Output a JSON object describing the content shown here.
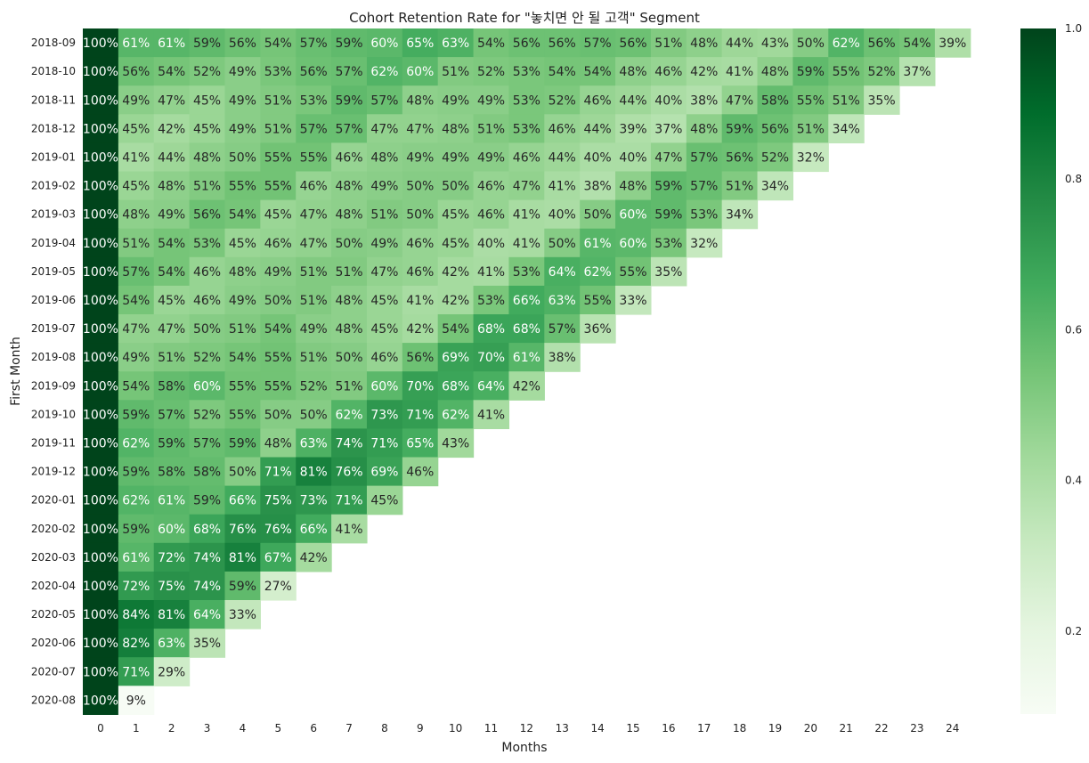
{
  "chart_data": {
    "type": "heatmap",
    "title": "Cohort Retention Rate for \"놓치면 안 될 고객\" Segment",
    "xlabel": "Months",
    "ylabel": "First Month",
    "x": [
      "0",
      "1",
      "2",
      "3",
      "4",
      "5",
      "6",
      "7",
      "8",
      "9",
      "10",
      "11",
      "12",
      "13",
      "14",
      "15",
      "16",
      "17",
      "18",
      "19",
      "20",
      "21",
      "22",
      "23",
      "24"
    ],
    "y": [
      "2018-09",
      "2018-10",
      "2018-11",
      "2018-12",
      "2019-01",
      "2019-02",
      "2019-03",
      "2019-04",
      "2019-05",
      "2019-06",
      "2019-07",
      "2019-08",
      "2019-09",
      "2019-10",
      "2019-11",
      "2019-12",
      "2020-01",
      "2020-02",
      "2020-03",
      "2020-04",
      "2020-05",
      "2020-06",
      "2020-07",
      "2020-08"
    ],
    "values": [
      [
        100,
        61,
        61,
        59,
        56,
        54,
        57,
        59,
        60,
        65,
        63,
        54,
        56,
        56,
        57,
        56,
        51,
        48,
        44,
        43,
        50,
        62,
        56,
        54,
        39
      ],
      [
        100,
        56,
        54,
        52,
        49,
        53,
        56,
        57,
        62,
        60,
        51,
        52,
        53,
        54,
        54,
        48,
        46,
        42,
        41,
        48,
        59,
        55,
        52,
        37
      ],
      [
        100,
        49,
        47,
        45,
        49,
        51,
        53,
        59,
        57,
        48,
        49,
        49,
        53,
        52,
        46,
        44,
        40,
        38,
        47,
        58,
        55,
        51,
        35
      ],
      [
        100,
        45,
        42,
        45,
        49,
        51,
        57,
        57,
        47,
        47,
        48,
        51,
        53,
        46,
        44,
        39,
        37,
        48,
        59,
        56,
        51,
        34
      ],
      [
        100,
        41,
        44,
        48,
        50,
        55,
        55,
        46,
        48,
        49,
        49,
        49,
        46,
        44,
        40,
        40,
        47,
        57,
        56,
        52,
        32
      ],
      [
        100,
        45,
        48,
        51,
        55,
        55,
        46,
        48,
        49,
        50,
        50,
        46,
        47,
        41,
        38,
        48,
        59,
        57,
        51,
        34
      ],
      [
        100,
        48,
        49,
        56,
        54,
        45,
        47,
        48,
        51,
        50,
        45,
        46,
        41,
        40,
        50,
        60,
        59,
        53,
        34
      ],
      [
        100,
        51,
        54,
        53,
        45,
        46,
        47,
        50,
        49,
        46,
        45,
        40,
        41,
        50,
        61,
        60,
        53,
        32
      ],
      [
        100,
        57,
        54,
        46,
        48,
        49,
        51,
        51,
        47,
        46,
        42,
        41,
        53,
        64,
        62,
        55,
        35
      ],
      [
        100,
        54,
        45,
        46,
        49,
        50,
        51,
        48,
        45,
        41,
        42,
        53,
        66,
        63,
        55,
        33
      ],
      [
        100,
        47,
        47,
        50,
        51,
        54,
        49,
        48,
        45,
        42,
        54,
        68,
        68,
        57,
        36
      ],
      [
        100,
        49,
        51,
        52,
        54,
        55,
        51,
        50,
        46,
        56,
        69,
        70,
        61,
        38
      ],
      [
        100,
        54,
        58,
        60,
        55,
        55,
        52,
        51,
        60,
        70,
        68,
        64,
        42
      ],
      [
        100,
        59,
        57,
        52,
        55,
        50,
        50,
        62,
        73,
        71,
        62,
        41
      ],
      [
        100,
        62,
        59,
        57,
        59,
        48,
        63,
        74,
        71,
        65,
        43
      ],
      [
        100,
        59,
        58,
        58,
        50,
        71,
        81,
        76,
        69,
        46
      ],
      [
        100,
        62,
        61,
        59,
        66,
        75,
        73,
        71,
        45
      ],
      [
        100,
        59,
        60,
        68,
        76,
        76,
        66,
        41
      ],
      [
        100,
        61,
        72,
        74,
        81,
        67,
        42
      ],
      [
        100,
        72,
        75,
        74,
        59,
        27
      ],
      [
        100,
        84,
        81,
        64,
        33
      ],
      [
        100,
        82,
        63,
        35
      ],
      [
        100,
        71,
        29
      ],
      [
        100,
        9
      ]
    ],
    "value_format": "percent",
    "colorbar": {
      "ticks": [
        "0.2",
        "0.4",
        "0.6",
        "0.8",
        "1.0"
      ],
      "vmin": 0.09,
      "vmax": 1.0,
      "colormap": "Greens"
    },
    "grid": false
  }
}
